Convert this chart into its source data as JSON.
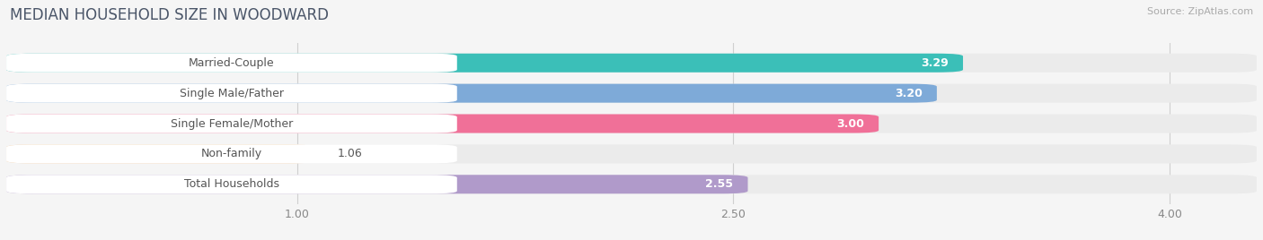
{
  "title": "MEDIAN HOUSEHOLD SIZE IN WOODWARD",
  "source": "Source: ZipAtlas.com",
  "categories": [
    "Married-Couple",
    "Single Male/Father",
    "Single Female/Mother",
    "Non-family",
    "Total Households"
  ],
  "values": [
    3.29,
    3.2,
    3.0,
    1.06,
    2.55
  ],
  "bar_colors": [
    "#3bbfb8",
    "#7eaad8",
    "#f07098",
    "#f5c99a",
    "#b09aca"
  ],
  "xlim_data": [
    0.0,
    4.3
  ],
  "x_axis_min": 1.0,
  "x_axis_max": 4.0,
  "xticks": [
    1.0,
    2.5,
    4.0
  ],
  "bar_height": 0.62,
  "bg_color": "#f5f5f5",
  "bar_bg_color": "#eeeeee",
  "title_fontsize": 12,
  "label_fontsize": 9,
  "value_fontsize": 9,
  "source_fontsize": 8,
  "title_color": "#4a5568",
  "label_color": "#555555",
  "source_color": "#aaaaaa"
}
